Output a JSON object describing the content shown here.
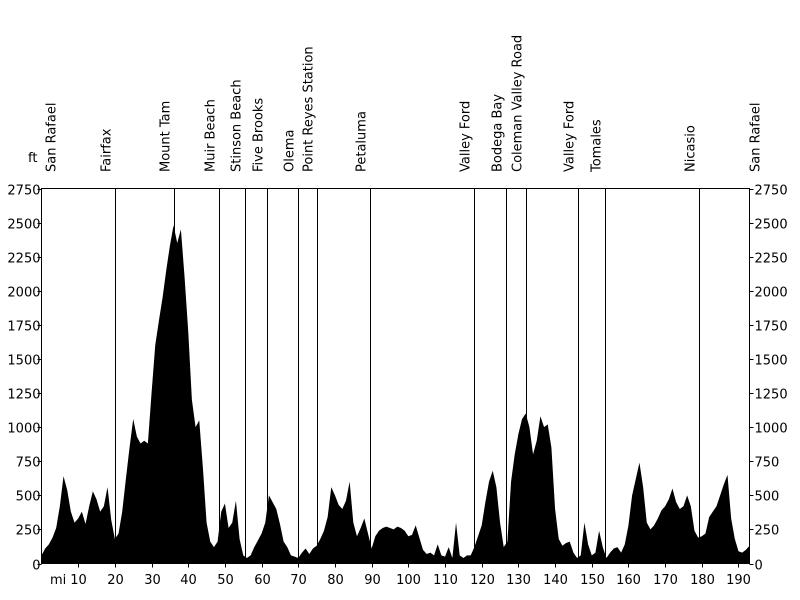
{
  "chart_data": {
    "type": "area",
    "y_unit": "ft",
    "x_unit": "mi",
    "xlim": [
      0,
      193
    ],
    "ylim": [
      0,
      2750
    ],
    "x_ticks": [
      10,
      20,
      30,
      40,
      50,
      60,
      70,
      80,
      90,
      100,
      110,
      120,
      130,
      140,
      150,
      160,
      170,
      180,
      190
    ],
    "y_ticks": [
      0,
      250,
      500,
      750,
      1000,
      1250,
      1500,
      1750,
      2000,
      2250,
      2500,
      2750
    ],
    "fill_color": "#000000",
    "waypoints": [
      {
        "name": "San Rafael",
        "mile": 0,
        "guide": false
      },
      {
        "name": "Fairfax",
        "mile": 20.1,
        "guide": true
      },
      {
        "name": "Mount Tam",
        "mile": 36.2,
        "guide": true
      },
      {
        "name": "Muir Beach",
        "mile": 48.5,
        "guide": true
      },
      {
        "name": "Stinson Beach",
        "mile": 55.5,
        "guide": true
      },
      {
        "name": "Five Brooks",
        "mile": 61.4,
        "guide": true
      },
      {
        "name": "Olema",
        "mile": 69.8,
        "guide": true
      },
      {
        "name": "Point Reyes Station",
        "mile": 75.0,
        "guide": true
      },
      {
        "name": "Petaluma",
        "mile": 89.5,
        "guide": true
      },
      {
        "name": "Valley Ford",
        "mile": 117.8,
        "guide": true
      },
      {
        "name": "Bodega Bay",
        "mile": 126.6,
        "guide": true
      },
      {
        "name": "Coleman Valley Road",
        "mile": 132.1,
        "guide": true
      },
      {
        "name": "Valley Ford",
        "mile": 146.3,
        "guide": true
      },
      {
        "name": "Tomales",
        "mile": 153.5,
        "guide": true
      },
      {
        "name": "Nicasio",
        "mile": 179.2,
        "guide": true
      },
      {
        "name": "San Rafael",
        "mile": 193,
        "guide": false
      }
    ],
    "profile": [
      [
        0,
        60
      ],
      [
        1,
        110
      ],
      [
        2,
        140
      ],
      [
        3,
        190
      ],
      [
        4,
        260
      ],
      [
        5,
        420
      ],
      [
        6,
        640
      ],
      [
        7,
        540
      ],
      [
        8,
        380
      ],
      [
        9,
        300
      ],
      [
        10,
        330
      ],
      [
        11,
        380
      ],
      [
        12,
        290
      ],
      [
        13,
        420
      ],
      [
        14,
        530
      ],
      [
        15,
        470
      ],
      [
        16,
        380
      ],
      [
        17,
        420
      ],
      [
        18,
        560
      ],
      [
        19,
        320
      ],
      [
        20,
        180
      ],
      [
        21,
        220
      ],
      [
        22,
        380
      ],
      [
        23,
        620
      ],
      [
        24,
        850
      ],
      [
        25,
        1060
      ],
      [
        26,
        930
      ],
      [
        27,
        880
      ],
      [
        28,
        900
      ],
      [
        29,
        880
      ],
      [
        30,
        1250
      ],
      [
        31,
        1600
      ],
      [
        32,
        1780
      ],
      [
        33,
        1950
      ],
      [
        34,
        2150
      ],
      [
        35,
        2330
      ],
      [
        36,
        2480
      ],
      [
        37,
        2350
      ],
      [
        38,
        2450
      ],
      [
        39,
        2100
      ],
      [
        40,
        1700
      ],
      [
        41,
        1200
      ],
      [
        42,
        1000
      ],
      [
        43,
        1050
      ],
      [
        44,
        700
      ],
      [
        45,
        300
      ],
      [
        46,
        160
      ],
      [
        47,
        120
      ],
      [
        48,
        160
      ],
      [
        49,
        380
      ],
      [
        50,
        440
      ],
      [
        51,
        260
      ],
      [
        52,
        300
      ],
      [
        53,
        460
      ],
      [
        54,
        180
      ],
      [
        55,
        60
      ],
      [
        56,
        40
      ],
      [
        57,
        60
      ],
      [
        58,
        120
      ],
      [
        59,
        170
      ],
      [
        60,
        220
      ],
      [
        61,
        300
      ],
      [
        62,
        500
      ],
      [
        63,
        450
      ],
      [
        64,
        400
      ],
      [
        65,
        290
      ],
      [
        66,
        160
      ],
      [
        67,
        120
      ],
      [
        68,
        60
      ],
      [
        69,
        50
      ],
      [
        70,
        40
      ],
      [
        71,
        80
      ],
      [
        72,
        110
      ],
      [
        73,
        70
      ],
      [
        74,
        110
      ],
      [
        75,
        130
      ],
      [
        76,
        180
      ],
      [
        77,
        240
      ],
      [
        78,
        340
      ],
      [
        79,
        560
      ],
      [
        80,
        500
      ],
      [
        81,
        430
      ],
      [
        82,
        400
      ],
      [
        83,
        460
      ],
      [
        84,
        600
      ],
      [
        85,
        300
      ],
      [
        86,
        200
      ],
      [
        87,
        260
      ],
      [
        88,
        330
      ],
      [
        89,
        220
      ],
      [
        90,
        110
      ],
      [
        91,
        200
      ],
      [
        92,
        240
      ],
      [
        93,
        260
      ],
      [
        94,
        270
      ],
      [
        95,
        260
      ],
      [
        96,
        250
      ],
      [
        97,
        270
      ],
      [
        98,
        260
      ],
      [
        99,
        240
      ],
      [
        100,
        200
      ],
      [
        101,
        210
      ],
      [
        102,
        280
      ],
      [
        103,
        190
      ],
      [
        104,
        100
      ],
      [
        105,
        70
      ],
      [
        106,
        80
      ],
      [
        107,
        60
      ],
      [
        108,
        140
      ],
      [
        109,
        60
      ],
      [
        110,
        50
      ],
      [
        111,
        120
      ],
      [
        112,
        40
      ],
      [
        113,
        300
      ],
      [
        114,
        60
      ],
      [
        115,
        40
      ],
      [
        116,
        60
      ],
      [
        117,
        60
      ],
      [
        118,
        120
      ],
      [
        119,
        200
      ],
      [
        120,
        280
      ],
      [
        121,
        450
      ],
      [
        122,
        600
      ],
      [
        123,
        680
      ],
      [
        124,
        560
      ],
      [
        125,
        300
      ],
      [
        126,
        120
      ],
      [
        127,
        160
      ],
      [
        128,
        600
      ],
      [
        129,
        800
      ],
      [
        130,
        950
      ],
      [
        131,
        1060
      ],
      [
        132,
        1100
      ],
      [
        133,
        1000
      ],
      [
        134,
        800
      ],
      [
        135,
        900
      ],
      [
        136,
        1080
      ],
      [
        137,
        1000
      ],
      [
        138,
        1020
      ],
      [
        139,
        850
      ],
      [
        140,
        400
      ],
      [
        141,
        180
      ],
      [
        142,
        130
      ],
      [
        143,
        150
      ],
      [
        144,
        160
      ],
      [
        145,
        80
      ],
      [
        146,
        40
      ],
      [
        147,
        60
      ],
      [
        148,
        300
      ],
      [
        149,
        140
      ],
      [
        150,
        60
      ],
      [
        151,
        80
      ],
      [
        152,
        240
      ],
      [
        153,
        120
      ],
      [
        154,
        40
      ],
      [
        155,
        80
      ],
      [
        156,
        110
      ],
      [
        157,
        120
      ],
      [
        158,
        80
      ],
      [
        159,
        140
      ],
      [
        160,
        280
      ],
      [
        161,
        500
      ],
      [
        162,
        620
      ],
      [
        163,
        740
      ],
      [
        164,
        560
      ],
      [
        165,
        300
      ],
      [
        166,
        250
      ],
      [
        167,
        280
      ],
      [
        168,
        330
      ],
      [
        169,
        390
      ],
      [
        170,
        420
      ],
      [
        171,
        470
      ],
      [
        172,
        550
      ],
      [
        173,
        450
      ],
      [
        174,
        400
      ],
      [
        175,
        420
      ],
      [
        176,
        500
      ],
      [
        177,
        420
      ],
      [
        178,
        240
      ],
      [
        179,
        190
      ],
      [
        180,
        200
      ],
      [
        181,
        220
      ],
      [
        182,
        340
      ],
      [
        183,
        380
      ],
      [
        184,
        420
      ],
      [
        185,
        500
      ],
      [
        186,
        580
      ],
      [
        187,
        650
      ],
      [
        188,
        330
      ],
      [
        189,
        180
      ],
      [
        190,
        90
      ],
      [
        191,
        80
      ],
      [
        192,
        100
      ],
      [
        193,
        130
      ]
    ]
  }
}
